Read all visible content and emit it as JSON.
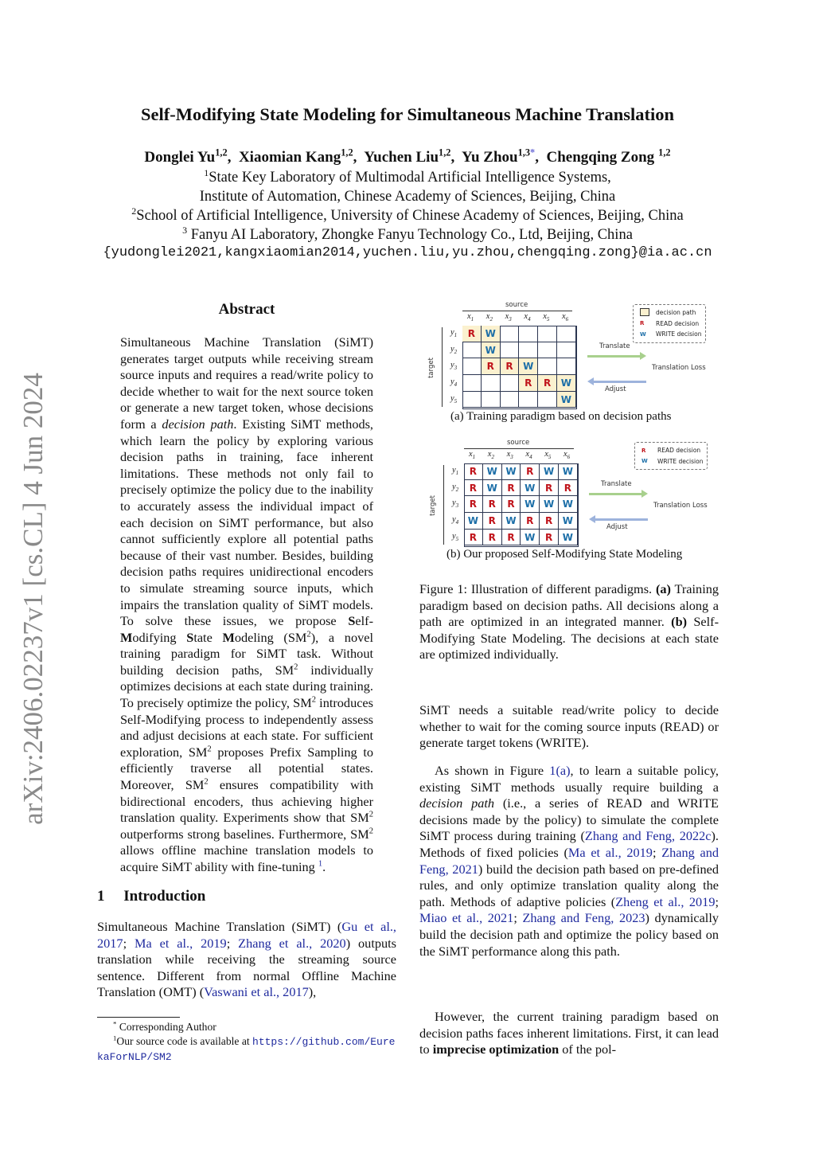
{
  "arxiv_stamp": "arXiv:2406.02237v1  [cs.CL]  4 Jun 2024",
  "title": "Self-Modifying State Modeling for Simultaneous Machine Translation",
  "authors": [
    {
      "name": "Donglei Yu",
      "sup": "1,2"
    },
    {
      "name": "Xiaomian Kang",
      "sup": "1,2"
    },
    {
      "name": "Yuchen Liu",
      "sup": "1,2"
    },
    {
      "name": "Yu Zhou",
      "sup": "1,3",
      "mark": "*"
    },
    {
      "name": "Chengqing Zong",
      "sup": "1,2"
    }
  ],
  "affiliations": [
    {
      "sup": "1",
      "text": "State Key Laboratory of Multimodal Artificial Intelligence Systems,"
    },
    {
      "sup": "",
      "text": "Institute of Automation, Chinese Academy of Sciences, Beijing, China"
    },
    {
      "sup": "2",
      "text": "School of Artificial Intelligence, University of Chinese Academy of Sciences, Beijing, China"
    },
    {
      "sup": "3",
      "text": " Fanyu AI Laboratory, Zhongke Fanyu Technology Co., Ltd, Beijing, China"
    }
  ],
  "email": "{yudonglei2021,kangxiaomian2014,yuchen.liu,yu.zhou,chengqing.zong}@ia.ac.cn",
  "abstract_heading": "Abstract",
  "abstract": [
    [
      "Simultaneous Machine Translation (SiMT) generates target outputs while receiving stream source inputs and requires a read/write policy to decide whether to wait for the next source token or generate a new target token, whose decisions form a ",
      ""
    ],
    [
      "decision path",
      "i"
    ],
    [
      ". Existing SiMT methods, which learn the policy by exploring various decision paths in training, face inherent limitations. These methods not only fail to precisely optimize the policy due to the inability to accurately assess the individual impact of each decision on SiMT performance, but also cannot sufficiently explore all potential paths because of their vast number. Besides, building decision paths requires unidirectional encoders to simulate streaming source inputs, which impairs the translation quality of SiMT models. To solve these issues, we propose ",
      ""
    ],
    [
      "S",
      "b"
    ],
    [
      "elf-",
      ""
    ],
    [
      "M",
      "b"
    ],
    [
      "odifying ",
      ""
    ],
    [
      "S",
      "b"
    ],
    [
      "tate ",
      ""
    ],
    [
      "M",
      "b"
    ],
    [
      "odeling (SM",
      ""
    ],
    [
      "2",
      "sup"
    ],
    [
      "), a novel training paradigm for SiMT task. Without building decision paths, SM",
      ""
    ],
    [
      "2",
      "sup"
    ],
    [
      " individually optimizes decisions at each state during training. To precisely optimize the policy, SM",
      ""
    ],
    [
      "2",
      "sup"
    ],
    [
      " introduces Self-Modifying process to independently assess and adjust decisions at each state. For sufficient exploration, SM",
      ""
    ],
    [
      "2",
      "sup"
    ],
    [
      " proposes Prefix Sampling to efficiently traverse all potential states. Moreover, SM",
      ""
    ],
    [
      "2",
      "sup"
    ],
    [
      " ensures compatibility with bidirectional encoders, thus achieving higher translation quality. Experiments show that SM",
      ""
    ],
    [
      "2",
      "sup"
    ],
    [
      " outperforms strong baselines. Furthermore, SM",
      ""
    ],
    [
      "2",
      "sup"
    ],
    [
      " allows offline machine translation models to acquire SiMT ability with fine-tuning ",
      ""
    ],
    [
      "1",
      "supc"
    ],
    [
      ".",
      ""
    ]
  ],
  "intro_heading": "1     Introduction",
  "intro": [
    [
      "Simultaneous Machine Translation (SiMT) (",
      ""
    ],
    [
      "Gu et al., 2017",
      "c"
    ],
    [
      "; ",
      ""
    ],
    [
      "Ma et al., 2019",
      "c"
    ],
    [
      "; ",
      ""
    ],
    [
      "Zhang et al., 2020",
      "c"
    ],
    [
      ") outputs translation while receiving the streaming source sentence. Different from normal Offline Machine Translation (OMT) (",
      ""
    ],
    [
      "Vaswani et al., 2017",
      "c"
    ],
    [
      "),",
      ""
    ]
  ],
  "footnotes": {
    "corresponding": {
      "mark": "*",
      "text": " Corresponding Author"
    },
    "code": {
      "mark": "1",
      "text": "Our source code is available at ",
      "link": "https://github.com/EurekaForNLP/SM2"
    }
  },
  "figure": {
    "source_label": "source",
    "target_label": "target",
    "x_labels": [
      "x1",
      "x2",
      "x3",
      "x4",
      "x5",
      "x6"
    ],
    "y_labels": [
      "y1",
      "y2",
      "y3",
      "y4",
      "y5"
    ],
    "translate_label": "Translate",
    "adjust_label": "Adjust",
    "loss_label": "Translation Loss",
    "legend_a": [
      {
        "symbol": "",
        "text": "decision path"
      },
      {
        "symbol": "R",
        "text": "READ decision"
      },
      {
        "symbol": "W",
        "text": "WRITE decision"
      }
    ],
    "legend_b": [
      {
        "symbol": "R",
        "text": "READ decision"
      },
      {
        "symbol": "W",
        "text": "WRITE decision"
      }
    ],
    "grid_a": [
      [
        "R",
        "W",
        "",
        "",
        "",
        ""
      ],
      [
        "",
        "W",
        "",
        "",
        "",
        ""
      ],
      [
        "",
        "R",
        "R",
        "W",
        "",
        ""
      ],
      [
        "",
        "",
        "",
        "R",
        "R",
        "W"
      ],
      [
        "",
        "",
        "",
        "",
        "",
        "W"
      ]
    ],
    "grid_b": [
      [
        "R",
        "W",
        "W",
        "R",
        "W",
        "W"
      ],
      [
        "R",
        "W",
        "R",
        "W",
        "R",
        "R"
      ],
      [
        "R",
        "R",
        "R",
        "W",
        "W",
        "W"
      ],
      [
        "W",
        "R",
        "W",
        "R",
        "R",
        "W"
      ],
      [
        "R",
        "R",
        "R",
        "W",
        "R",
        "W"
      ]
    ],
    "colors": {
      "read": "#c0141b",
      "write": "#1d6fa8",
      "path": "#fbf1cf",
      "translate_arrow": "#a8d08d",
      "adjust_arrow": "#9db3dc"
    },
    "caption_a": "(a)  Training paradigm based on decision paths",
    "caption_b": "(b)  Our proposed Self-Modifying State Modeling"
  },
  "figure_caption": [
    [
      "Figure 1: Illustration of different paradigms. ",
      ""
    ],
    [
      "(a)",
      "b"
    ],
    [
      " Training paradigm based on decision paths. All decisions along a path are optimized in an integrated manner. ",
      ""
    ],
    [
      "(b)",
      "b"
    ],
    [
      " Self-Modifying State Modeling. The decisions at each state are optimized individually.",
      ""
    ]
  ],
  "right_paragraphs": [
    [
      [
        "SiMT needs a suitable read/write policy to decide whether to wait for the coming source inputs (READ) or generate target tokens (WRITE).",
        ""
      ]
    ],
    [
      [
        "As shown in Figure ",
        ""
      ],
      [
        "1(a)",
        "c"
      ],
      [
        ", to learn a suitable policy, existing SiMT methods usually require building a ",
        ""
      ],
      [
        "decision path",
        "i"
      ],
      [
        " (i.e., a series of READ and WRITE decisions made by the policy) to simulate the complete SiMT process during training (",
        ""
      ],
      [
        "Zhang and Feng, 2022c",
        "c"
      ],
      [
        "). Methods of fixed policies (",
        ""
      ],
      [
        "Ma et al., 2019",
        "c"
      ],
      [
        "; ",
        ""
      ],
      [
        "Zhang and Feng, 2021",
        "c"
      ],
      [
        ") build the decision path based on pre-defined rules, and only optimize translation quality along the path. Methods of adaptive policies (",
        ""
      ],
      [
        "Zheng et al., 2019",
        "c"
      ],
      [
        "; ",
        ""
      ],
      [
        "Miao et al., 2021",
        "c"
      ],
      [
        "; ",
        ""
      ],
      [
        "Zhang and Feng, 2023",
        "c"
      ],
      [
        ") dynamically build the decision path and optimize the policy based on the SiMT performance along this path.",
        ""
      ]
    ],
    [
      [
        "However, the current training paradigm based on decision paths faces inherent limitations. First, it can lead to ",
        ""
      ],
      [
        "imprecise optimization",
        "b"
      ],
      [
        " of the pol-",
        ""
      ]
    ]
  ]
}
